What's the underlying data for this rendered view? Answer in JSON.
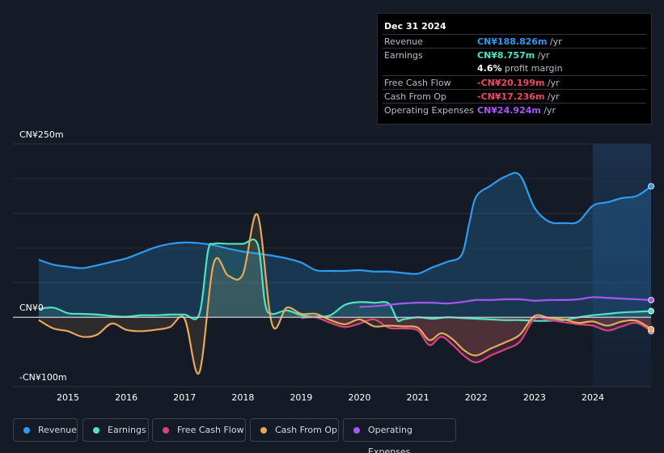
{
  "tooltip": {
    "date": "Dec 31 2024",
    "rows": [
      {
        "label": "Revenue",
        "value": "CN¥188.826m",
        "unit": " /yr",
        "color": "#2d9bf0"
      },
      {
        "label": "Earnings",
        "value": "CN¥8.757m",
        "unit": " /yr",
        "color": "#4fe3c1"
      },
      {
        "label": "",
        "value": "4.6%",
        "unit": " profit margin",
        "color": "#ffffff"
      },
      {
        "label": "Free Cash Flow",
        "value": "-CN¥20.199m",
        "unit": " /yr",
        "color": "#f0485e"
      },
      {
        "label": "Cash From Op",
        "value": "-CN¥17.236m",
        "unit": " /yr",
        "color": "#f0485e"
      },
      {
        "label": "Operating Expenses",
        "value": "CN¥24.924m",
        "unit": " /yr",
        "color": "#a855f7"
      }
    ]
  },
  "legend": [
    {
      "label": "Revenue",
      "color": "#2d9bf0"
    },
    {
      "label": "Earnings",
      "color": "#4fe3c1"
    },
    {
      "label": "Free Cash Flow",
      "color": "#d6457a"
    },
    {
      "label": "Cash From Op",
      "color": "#e8a85a"
    },
    {
      "label": "Operating Expenses",
      "color": "#a855f7"
    }
  ],
  "chart_data": {
    "type": "line",
    "title": "",
    "xlabel": "",
    "ylabel": "",
    "ylim": [
      -100,
      250
    ],
    "y_tick_labels": [
      "CN¥250m",
      "CN¥0",
      "-CN¥100m"
    ],
    "x_tick_labels": [
      "2015",
      "2016",
      "2017",
      "2018",
      "2019",
      "2020",
      "2021",
      "2022",
      "2023",
      "2024"
    ],
    "x_ticks": [
      2015,
      2016,
      2017,
      2018,
      2019,
      2020,
      2021,
      2022,
      2023,
      2024
    ],
    "xlim": [
      2014.5,
      2025
    ],
    "highlight_from": 2024,
    "grid": true,
    "series": [
      {
        "name": "Revenue",
        "color": "#2d9bf0",
        "x": [
          2014.5,
          2014.75,
          2015.0,
          2015.25,
          2015.5,
          2015.75,
          2016.0,
          2016.25,
          2016.5,
          2016.75,
          2017.0,
          2017.25,
          2017.5,
          2017.75,
          2018.0,
          2018.25,
          2018.5,
          2018.75,
          2019.0,
          2019.25,
          2019.5,
          2019.75,
          2020.0,
          2020.25,
          2020.5,
          2020.75,
          2021.0,
          2021.25,
          2021.5,
          2021.75,
          2021.88,
          2022.0,
          2022.25,
          2022.5,
          2022.75,
          2023.0,
          2023.25,
          2023.5,
          2023.75,
          2024.0,
          2024.25,
          2024.5,
          2024.75,
          2025.0
        ],
        "y": [
          83,
          76,
          73,
          71,
          75,
          80,
          85,
          93,
          101,
          106,
          108,
          107,
          104,
          99,
          95,
          92,
          89,
          85,
          79,
          68,
          67,
          67,
          68,
          66,
          66,
          64,
          63,
          72,
          80,
          90,
          135,
          174,
          190,
          203,
          205,
          158,
          138,
          136,
          138,
          161,
          166,
          172,
          175,
          189
        ]
      },
      {
        "name": "Earnings",
        "color": "#4fe3c1",
        "x": [
          2014.5,
          2014.75,
          2015.0,
          2015.25,
          2015.5,
          2015.75,
          2016.0,
          2016.25,
          2016.5,
          2016.75,
          2017.0,
          2017.25,
          2017.4,
          2017.5,
          2017.75,
          2018.0,
          2018.25,
          2018.38,
          2018.5,
          2018.75,
          2019.0,
          2019.25,
          2019.5,
          2019.75,
          2020.0,
          2020.25,
          2020.5,
          2020.65,
          2020.75,
          2021.0,
          2021.25,
          2021.5,
          2021.75,
          2022.0,
          2022.25,
          2022.5,
          2022.75,
          2023.0,
          2023.25,
          2023.5,
          2023.75,
          2024.0,
          2024.25,
          2024.5,
          2024.75,
          2025.0
        ],
        "y": [
          12,
          14,
          6,
          5,
          4,
          2,
          1,
          3,
          3,
          4,
          4,
          4,
          95,
          106,
          106,
          106,
          106,
          20,
          5,
          10,
          3,
          1,
          3,
          18,
          22,
          21,
          20,
          -4,
          -3,
          0,
          -2,
          0,
          -1,
          -2,
          -3,
          -4,
          -4,
          -5,
          -5,
          -4,
          0,
          3,
          5,
          7,
          8,
          9
        ]
      },
      {
        "name": "Free Cash Flow",
        "color": "#d6457a",
        "x": [
          2019.0,
          2019.25,
          2019.5,
          2019.75,
          2020.0,
          2020.25,
          2020.5,
          2020.75,
          2021.0,
          2021.2,
          2021.4,
          2021.6,
          2021.8,
          2022.0,
          2022.25,
          2022.5,
          2022.75,
          2023.0,
          2023.25,
          2023.5,
          2023.75,
          2024.0,
          2024.25,
          2024.5,
          2024.75,
          2025.0
        ],
        "y": [
          -1,
          0,
          -8,
          -14,
          -9,
          -3,
          -15,
          -16,
          -19,
          -40,
          -28,
          -40,
          -56,
          -65,
          -55,
          -46,
          -35,
          -2,
          -4,
          -7,
          -10,
          -12,
          -19,
          -13,
          -8,
          -20
        ]
      },
      {
        "name": "Cash From Op",
        "color": "#e8a85a",
        "x": [
          2014.5,
          2014.75,
          2015.0,
          2015.25,
          2015.5,
          2015.75,
          2016.0,
          2016.25,
          2016.5,
          2016.75,
          2017.0,
          2017.25,
          2017.5,
          2017.75,
          2018.0,
          2018.25,
          2018.5,
          2018.75,
          2019.0,
          2019.25,
          2019.5,
          2019.75,
          2020.0,
          2020.25,
          2020.5,
          2020.75,
          2021.0,
          2021.2,
          2021.4,
          2021.6,
          2021.8,
          2022.0,
          2022.25,
          2022.5,
          2022.75,
          2023.0,
          2023.25,
          2023.5,
          2023.75,
          2024.0,
          2024.25,
          2024.5,
          2024.75,
          2025.0
        ],
        "y": [
          -4,
          -16,
          -20,
          -28,
          -25,
          -9,
          -18,
          -20,
          -18,
          -14,
          -2,
          -80,
          78,
          60,
          62,
          148,
          -10,
          14,
          5,
          5,
          -4,
          -10,
          -3,
          -13,
          -12,
          -13,
          -15,
          -33,
          -23,
          -32,
          -48,
          -55,
          -45,
          -36,
          -25,
          2,
          -1,
          -3,
          -8,
          -6,
          -12,
          -6,
          -5,
          -17
        ]
      },
      {
        "name": "Operating Expenses",
        "color": "#a855f7",
        "x": [
          2020.0,
          2020.25,
          2020.5,
          2020.75,
          2021.0,
          2021.25,
          2021.5,
          2021.75,
          2022.0,
          2022.25,
          2022.5,
          2022.75,
          2023.0,
          2023.25,
          2023.5,
          2023.75,
          2024.0,
          2024.25,
          2024.5,
          2024.75,
          2025.0
        ],
        "y": [
          15,
          16,
          18,
          20,
          21,
          21,
          20,
          22,
          25,
          25,
          26,
          26,
          24,
          25,
          25,
          26,
          29,
          28,
          27,
          26,
          25
        ]
      }
    ]
  }
}
